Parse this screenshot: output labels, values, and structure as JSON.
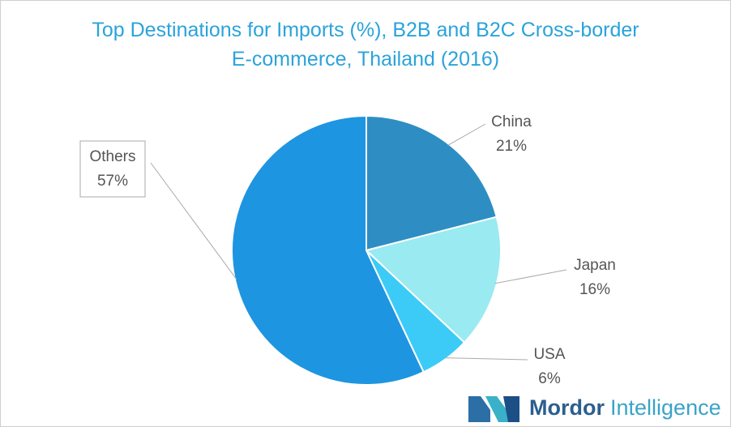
{
  "chart_data": {
    "type": "pie",
    "title": "Top Destinations for Imports (%), B2B and B2C Cross-border E-commerce, Thailand (2016)",
    "categories": [
      "China",
      "Japan",
      "USA",
      "Others"
    ],
    "values": [
      21,
      16,
      6,
      57
    ],
    "value_labels": [
      "21%",
      "16%",
      "6%",
      "57%"
    ],
    "colors": [
      "#2e8ec4",
      "#9aeaf1",
      "#3ccbf6",
      "#1e95e0"
    ]
  },
  "logo": {
    "brand": "Mordor",
    "suffix": "Intelligence"
  }
}
